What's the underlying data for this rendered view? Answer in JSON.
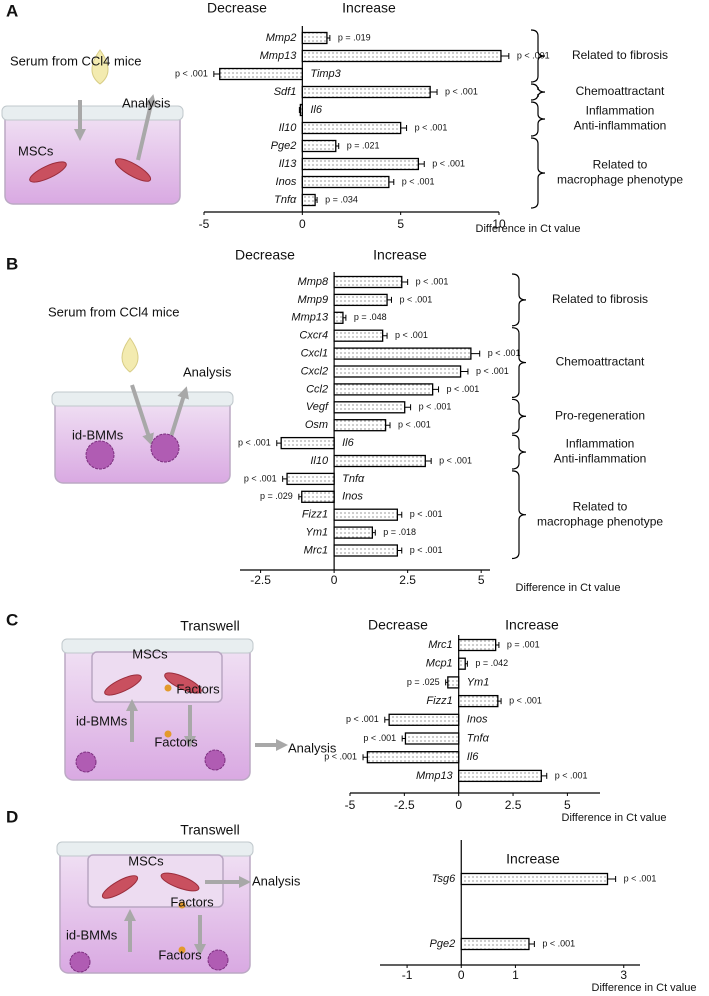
{
  "chart_data": [
    {
      "type": "bar",
      "orientation": "horizontal",
      "panel": "A",
      "left_label": "Decrease",
      "right_label": "Increase",
      "xlabel": "Difference in Ct value",
      "color": "#ffffff",
      "categories": [
        "Mmp2",
        "Mmp13",
        "Timp3",
        "Sdf1",
        "Il6",
        "Il10",
        "Pge2",
        "Il13",
        "Inos",
        "Tnfα"
      ],
      "values": [
        1.25,
        10.1,
        -4.2,
        6.5,
        -0.1,
        5.0,
        1.7,
        5.9,
        4.4,
        0.65
      ],
      "errors": [
        0.15,
        0.4,
        0.3,
        0.35,
        0.05,
        0.3,
        0.15,
        0.3,
        0.25,
        0.1
      ],
      "p_values": [
        "p = .019",
        "p < .001",
        "p < .001",
        "p < .001",
        null,
        "p < .001",
        "p = .021",
        "p < .001",
        "p < .001",
        "p = .034"
      ],
      "xlim": [
        -5,
        10
      ],
      "xticks": [
        -5,
        0,
        5,
        10
      ],
      "groups": [
        [
          "Related to fibrosis"
        ],
        [
          "Chemoattractant"
        ],
        [
          "Inflammation",
          "Anti-inflammation"
        ],
        [
          "Related to",
          "macrophage phenotype"
        ]
      ],
      "diagram": {
        "labels": [
          "Serum from CCl4 mice",
          "Analysis",
          "MSCs"
        ]
      }
    },
    {
      "type": "bar",
      "orientation": "horizontal",
      "panel": "B",
      "left_label": "Decrease",
      "right_label": "Increase",
      "xlabel": "Difference in Ct value",
      "color": "#ffffff",
      "categories": [
        "Mmp8",
        "Mmp9",
        "Mmp13",
        "Cxcr4",
        "Cxcl1",
        "Cxcl2",
        "Ccl2",
        "Vegf",
        "Osm",
        "Il6",
        "Il10",
        "Tnfα",
        "Inos",
        "Fizz1",
        "Ym1",
        "Mrc1"
      ],
      "values": [
        2.3,
        1.8,
        0.3,
        1.65,
        4.65,
        4.3,
        3.35,
        2.4,
        1.75,
        -1.8,
        3.1,
        -1.6,
        -1.1,
        2.15,
        1.3,
        2.15
      ],
      "errors": [
        0.2,
        0.15,
        0.1,
        0.15,
        0.3,
        0.25,
        0.2,
        0.2,
        0.15,
        0.15,
        0.2,
        0.15,
        0.1,
        0.15,
        0.1,
        0.15
      ],
      "p_values": [
        "p < .001",
        "p < .001",
        "p = .048",
        "p < .001",
        "p < .001",
        "p < .001",
        "p < .001",
        "p < .001",
        "p < .001",
        "p < .001",
        "p < .001",
        "p < .001",
        "p = .029",
        "p < .001",
        "p = .018",
        "p < .001"
      ],
      "xlim": [
        -3.2,
        5.3
      ],
      "xticks": [
        -2.5,
        0,
        2.5,
        5
      ],
      "groups": [
        [
          "Related to fibrosis"
        ],
        [
          "Chemoattractant"
        ],
        [
          "Pro-regeneration"
        ],
        [
          "Inflammation",
          "Anti-inflammation"
        ],
        [
          "Related to",
          "macrophage phenotype"
        ]
      ],
      "diagram": {
        "labels": [
          "Serum from CCl4 mice",
          "Analysis",
          "id-BMMs"
        ]
      }
    },
    {
      "type": "bar",
      "orientation": "horizontal",
      "panel": "C",
      "left_label": "Decrease",
      "right_label": "Increase",
      "xlabel": "Difference in Ct value",
      "color": "#ffffff",
      "categories": [
        "Mrc1",
        "Mcp1",
        "Ym1",
        "Fizz1",
        "Inos",
        "Tnfα",
        "Il6",
        "Mmp13"
      ],
      "values": [
        1.7,
        0.3,
        -0.5,
        1.8,
        -3.2,
        -2.45,
        -4.2,
        3.8
      ],
      "errors": [
        0.15,
        0.1,
        0.1,
        0.15,
        0.2,
        0.15,
        0.2,
        0.25
      ],
      "p_values": [
        "p = .001",
        "p = .042",
        "p = .025",
        "p < .001",
        "p < .001",
        "p < .001",
        "p < .001",
        "p < .001"
      ],
      "xlim": [
        -5,
        6.5
      ],
      "xticks": [
        -5,
        -2.5,
        0,
        2.5,
        5
      ],
      "diagram": {
        "title": "Transwell",
        "labels": [
          "MSCs",
          "Factors",
          "id-BMMs",
          "Factors",
          "Analysis"
        ]
      }
    },
    {
      "type": "bar",
      "orientation": "horizontal",
      "panel": "D",
      "right_label": "Increase",
      "xlabel": "Difference in Ct value",
      "color": "#ffffff",
      "categories": [
        "Tsg6",
        "Pge2"
      ],
      "values": [
        2.7,
        1.25
      ],
      "errors": [
        0.15,
        0.1
      ],
      "p_values": [
        "p < .001",
        "p < .001"
      ],
      "xlim": [
        -1.5,
        3.3
      ],
      "xticks": [
        -1,
        0,
        1,
        3
      ],
      "diagram": {
        "title": "Transwell",
        "labels": [
          "MSCs",
          "Factors",
          "Analysis",
          "id-BMMs",
          "Factors"
        ]
      }
    }
  ]
}
